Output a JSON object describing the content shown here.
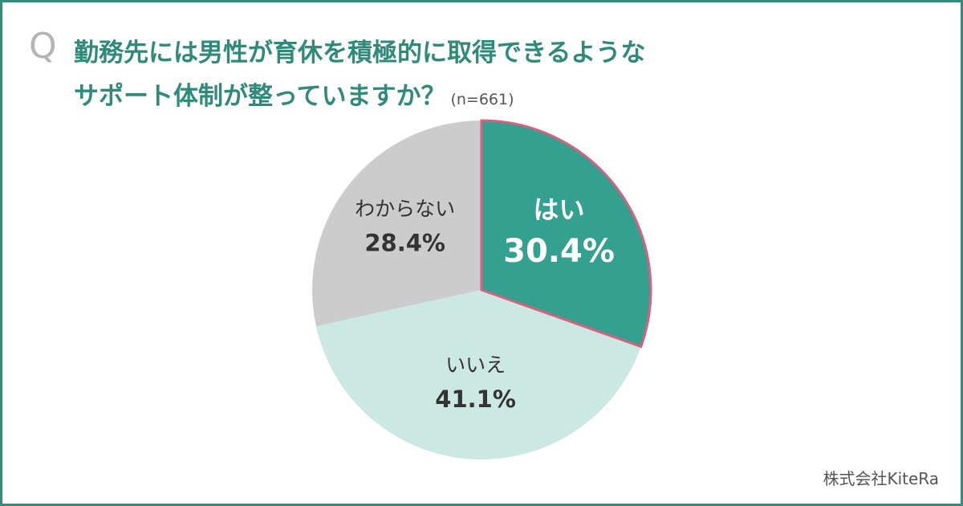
{
  "question": {
    "mark": "Q",
    "line1": "勤務先には男性が育休を積極的に取得できるような",
    "line2": "サポート体制が整っていますか？",
    "sample": "(n=661)"
  },
  "credit": "株式会社KiteRa",
  "colors": {
    "border": "#3a8a7c",
    "title": "#2f8a7a",
    "highlight_stroke": "#d9607e"
  },
  "chart_data": {
    "type": "pie",
    "start": "12 o'clock, clockwise",
    "slices": [
      {
        "label": "はい",
        "value": 30.4,
        "value_text": "30.4%",
        "color": "#34a08f",
        "text_color": "#ffffff",
        "highlight": true
      },
      {
        "label": "いいえ",
        "value": 41.1,
        "value_text": "41.1%",
        "color": "#cce8e3",
        "text_color": "#333333",
        "highlight": false
      },
      {
        "label": "わからない",
        "value": 28.4,
        "value_text": "28.4%",
        "color": "#cccccc",
        "text_color": "#333333",
        "highlight": false
      }
    ]
  }
}
